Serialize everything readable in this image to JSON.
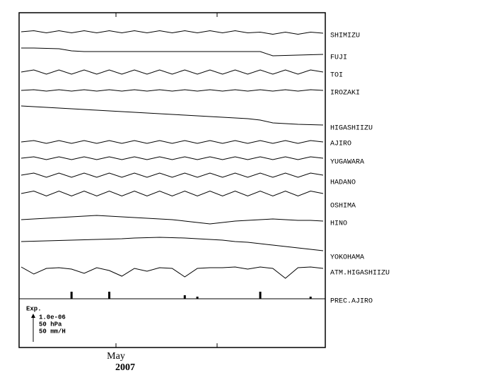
{
  "chart_data": {
    "type": "line",
    "xtick_labels": [
      "May",
      null
    ],
    "xtick_sublabel": "2007",
    "legend_title": "Exp.",
    "scale_labels": [
      "1.0e-06",
      "50 hPa",
      "50 mm/H"
    ],
    "color": "#000000",
    "series": [
      {
        "name": "SHIMIZU",
        "values": [
          0,
          1.5,
          -1.5,
          1.5,
          -1.5,
          1.5,
          -1.5,
          1.5,
          -1.5,
          1.5,
          -1.5,
          1.5,
          -1.5,
          1.5,
          -1.5,
          1.5,
          -1.5,
          1.5,
          -1.5,
          -0.5,
          -3.5,
          -0.5,
          -3.5,
          -0.5,
          -2
        ]
      },
      {
        "name": "FUJI",
        "values": [
          0,
          0,
          -0.5,
          -1,
          -4,
          -5,
          -5,
          -5,
          -5,
          -5,
          -5,
          -5,
          -5,
          -5,
          -5,
          -5,
          -5,
          -5,
          -5,
          -5,
          -11,
          -10.5,
          -10,
          -9.5,
          -9
        ]
      },
      {
        "name": "TOI",
        "values": [
          0,
          3,
          -3,
          3,
          -3,
          3,
          -3,
          3,
          -3,
          3,
          -3,
          3,
          -3,
          3,
          -3,
          3,
          -3,
          3,
          -3,
          3,
          -3,
          3,
          -3,
          3,
          0
        ]
      },
      {
        "name": "IROZAKI",
        "values": [
          0,
          1,
          -1,
          1,
          -1,
          1,
          -1,
          1,
          -1,
          1,
          -1,
          1,
          -1,
          1,
          -1,
          1,
          -1,
          1,
          -1,
          1,
          -1,
          1,
          -1,
          1,
          0
        ]
      },
      {
        "name": "HIGASHIIZU",
        "values": [
          0,
          -1,
          -2,
          -3,
          -4,
          -5,
          -6,
          -7,
          -8,
          -9,
          -10,
          -11,
          -12,
          -13,
          -14,
          -15,
          -16,
          -17,
          -18,
          -20,
          -24,
          -25,
          -26,
          -26.5,
          -27
        ]
      },
      {
        "name": "AJIRO",
        "values": [
          0,
          2,
          -2,
          2,
          -2,
          2,
          -2,
          2,
          -2,
          2,
          -2,
          2,
          -2,
          2,
          -2,
          2,
          -2,
          2,
          -2,
          2,
          -2,
          2,
          -2,
          2,
          0
        ]
      },
      {
        "name": "YUGAWARA",
        "values": [
          0,
          2,
          -2,
          2,
          -2,
          2,
          -2,
          2,
          -2,
          2,
          -2,
          2,
          -2,
          2,
          -2,
          2,
          -2,
          2,
          -2,
          2,
          -2,
          2,
          -2,
          2,
          0
        ]
      },
      {
        "name": "HADANO",
        "values": [
          0,
          3,
          -3,
          3,
          -3,
          3,
          -3,
          3,
          -3,
          3,
          -3,
          3,
          -3,
          3,
          -3,
          3,
          -3,
          3,
          -3,
          3,
          -3,
          3,
          -3,
          3,
          0
        ]
      },
      {
        "name": "OSHIMA",
        "values": [
          0,
          3.5,
          -3.5,
          3.5,
          -3.5,
          3.5,
          -3.5,
          3.5,
          -3.5,
          3.5,
          -3.5,
          3.5,
          -3.5,
          3.5,
          -3.5,
          3.5,
          -3.5,
          3.5,
          -3.5,
          3.5,
          -3.5,
          3.5,
          -3.5,
          3.5,
          0
        ]
      },
      {
        "name": "HINO",
        "values": [
          0,
          1,
          2,
          3,
          4,
          5,
          6,
          5,
          4,
          3,
          2,
          1,
          0,
          -2,
          -4,
          -6,
          -4,
          -2,
          -1,
          0,
          1,
          0,
          -1,
          -1,
          -2
        ]
      },
      {
        "name": "YOKOHAMA",
        "values": [
          0,
          0.5,
          1,
          1.5,
          2,
          2.5,
          3,
          3.5,
          4,
          5,
          5.5,
          6,
          5.5,
          5,
          4,
          3,
          2,
          0,
          -1,
          -3,
          -5,
          -7,
          -9,
          -11,
          -13
        ]
      },
      {
        "name": "ATM.HIGASHIIZU",
        "values": [
          0,
          -10,
          -2,
          -1,
          -3,
          -9,
          -1,
          -5,
          -13,
          -2,
          -6,
          -1,
          -2,
          -14,
          -2,
          -1,
          -1,
          0,
          -3,
          0,
          -2,
          -16,
          -1,
          0,
          -2
        ]
      },
      {
        "name": "PREC.AJIRO",
        "kind": "bar",
        "values": [
          0,
          0,
          0,
          0,
          10,
          0,
          0,
          10,
          0,
          0,
          0,
          0,
          0,
          5,
          3,
          0,
          0,
          0,
          0,
          10,
          0,
          0,
          0,
          3,
          0
        ]
      }
    ]
  }
}
